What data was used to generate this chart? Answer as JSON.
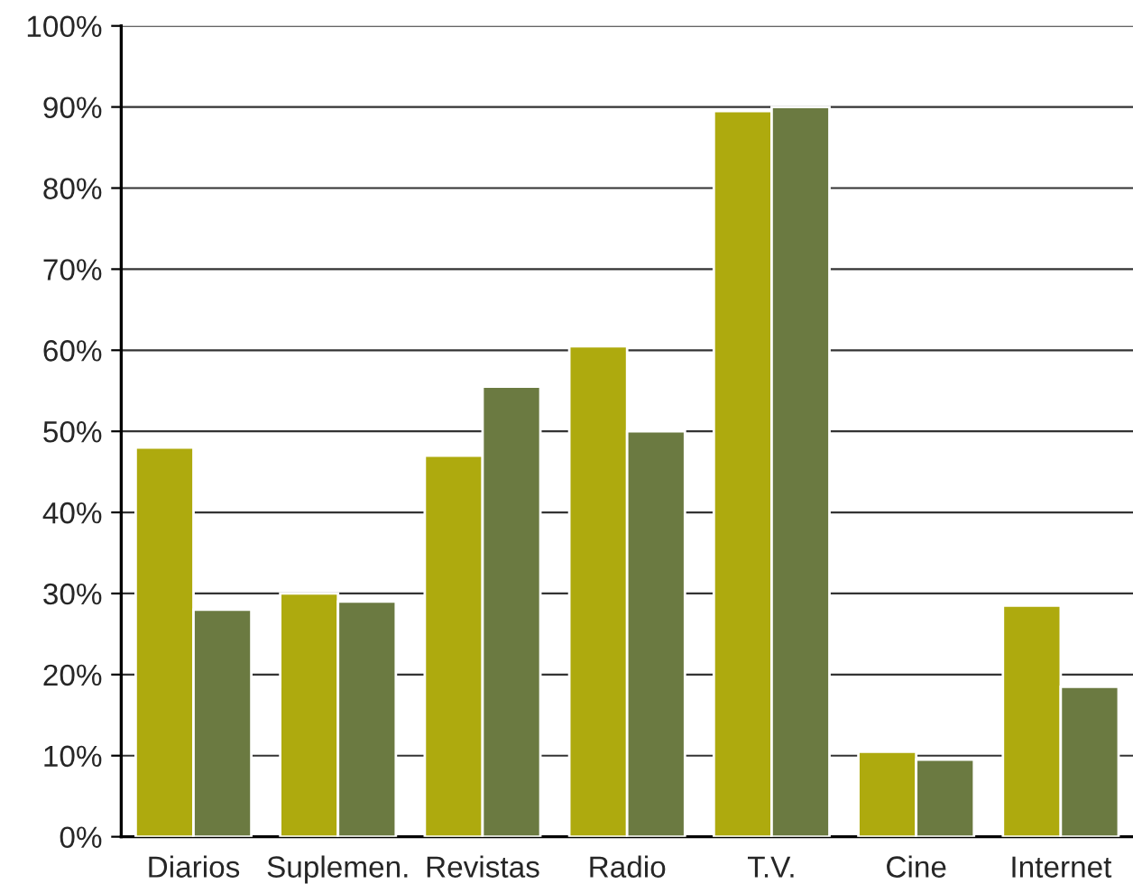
{
  "chart_data": {
    "type": "bar",
    "categories": [
      "Diarios",
      "Suplemen.",
      "Revistas",
      "Radio",
      "T.V.",
      "Cine",
      "Internet"
    ],
    "series": [
      {
        "color": "#aeaa0e",
        "values": [
          48,
          30,
          47,
          60.5,
          89.5,
          10.5,
          28.5
        ]
      },
      {
        "color": "#6b7a41",
        "values": [
          28,
          29,
          55.5,
          50,
          90,
          9.5,
          18.5
        ]
      }
    ],
    "ylim": [
      0,
      100
    ],
    "yticks": [
      {
        "value": 0,
        "label": "0%"
      },
      {
        "value": 10,
        "label": "10%"
      },
      {
        "value": 20,
        "label": "20%"
      },
      {
        "value": 30,
        "label": "30%"
      },
      {
        "value": 40,
        "label": "40%"
      },
      {
        "value": 50,
        "label": "50%"
      },
      {
        "value": 60,
        "label": "60%"
      },
      {
        "value": 70,
        "label": "70%"
      },
      {
        "value": 80,
        "label": "80%"
      },
      {
        "value": 90,
        "label": "90%"
      },
      {
        "value": 100,
        "label": "100%"
      }
    ],
    "grid": "y"
  }
}
